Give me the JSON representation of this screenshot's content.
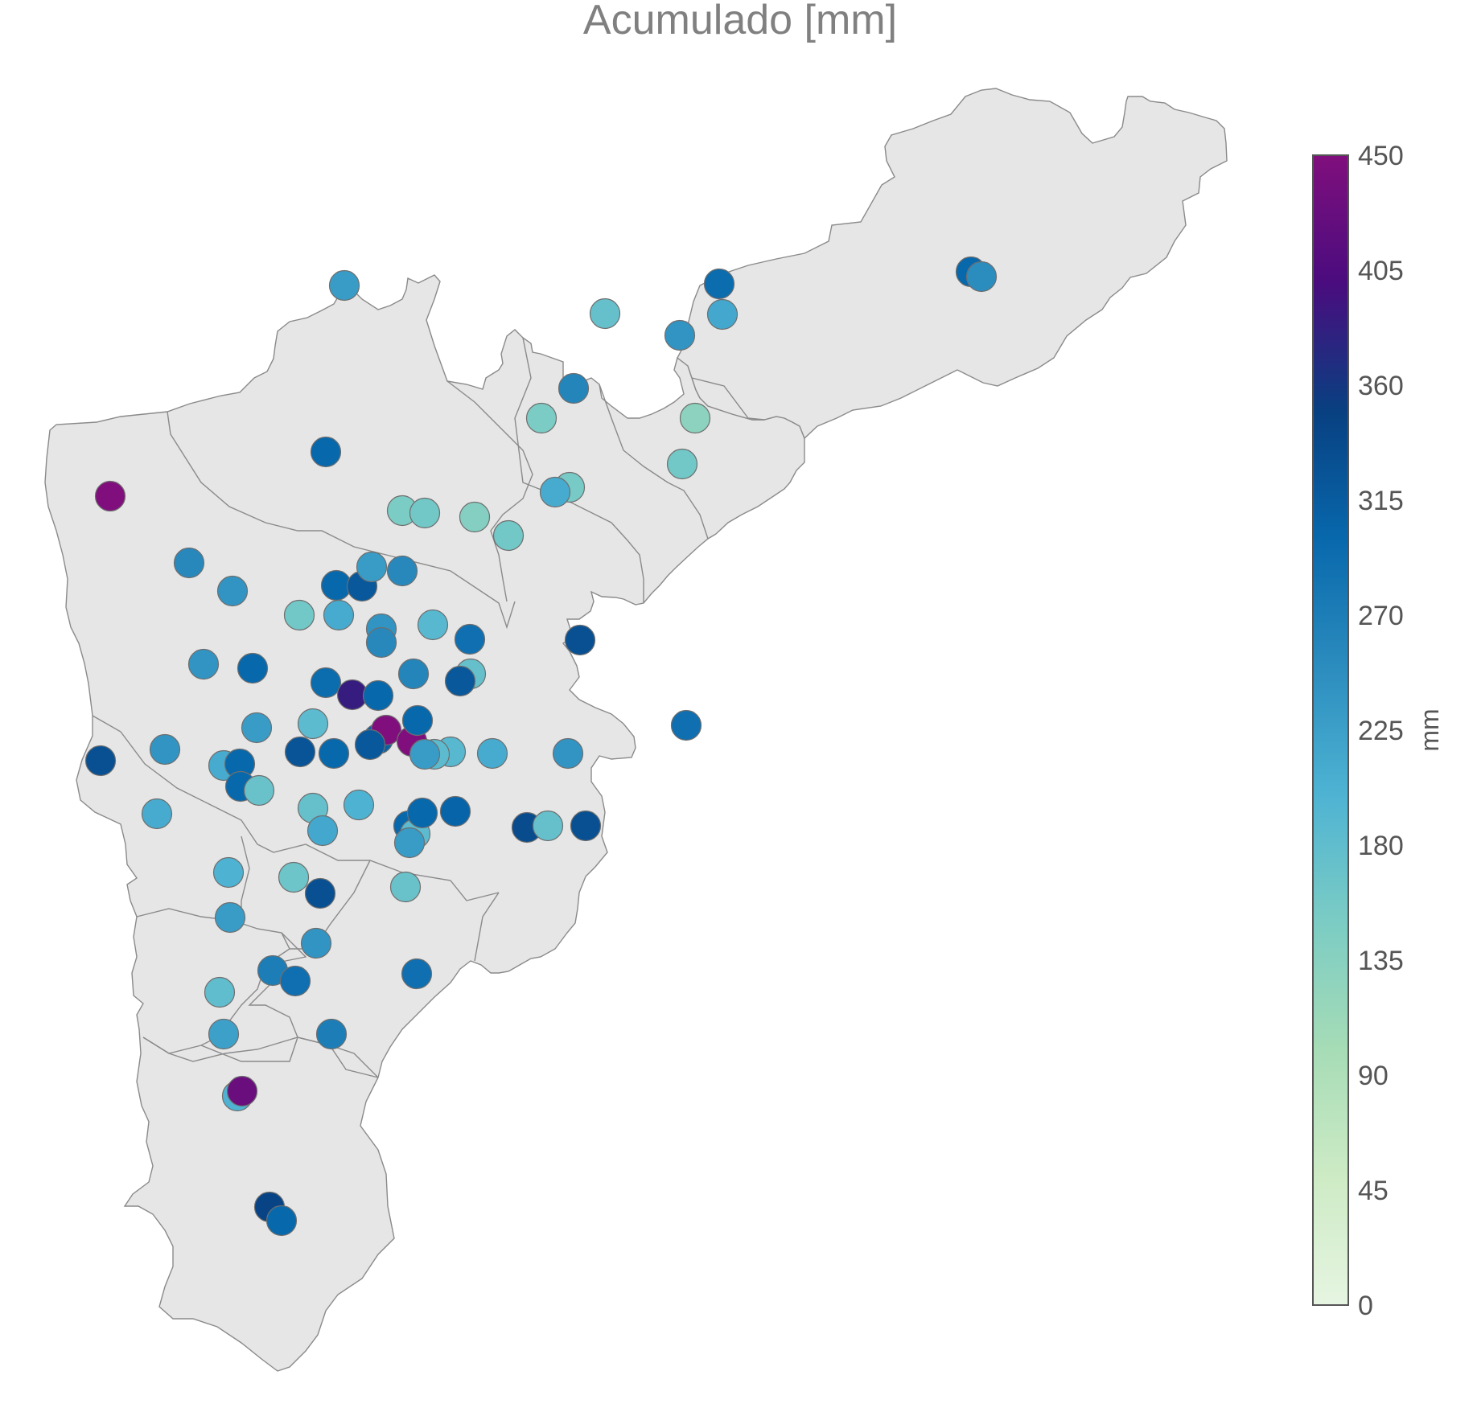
{
  "title": "Acumulado [mm]",
  "colorbar": {
    "label": "mm",
    "min": 0,
    "max": 450,
    "ticks": [
      "0",
      "45",
      "90",
      "135",
      "180",
      "225",
      "270",
      "315",
      "360",
      "405",
      "450"
    ],
    "stops": [
      "#e6f5e1",
      "#cdebc5",
      "#a6dcb6",
      "#7bccc4",
      "#4eb3d3",
      "#2b8cbe",
      "#0868ac",
      "#084081",
      "#4a0c7e",
      "#800f7d"
    ]
  },
  "stations": [
    {
      "lon_rel": 0.41,
      "lat_rel": 0.2,
      "value": 230
    },
    {
      "lon_rel": 0.12,
      "lat_rel": 0.55,
      "value": 450
    },
    {
      "value": 300
    },
    {
      "value": 150
    }
  ]
}
